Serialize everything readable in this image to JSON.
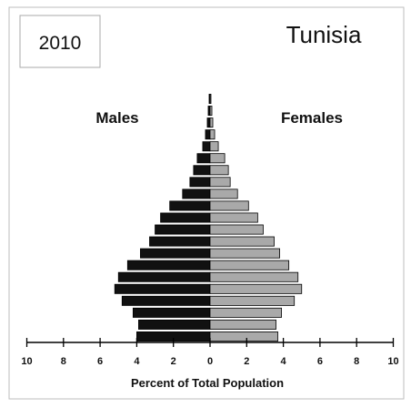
{
  "chart_data": {
    "type": "bar",
    "subtype": "population-pyramid",
    "year_label": "2010",
    "title": "Tunisia",
    "left_series_label": "Males",
    "right_series_label": "Females",
    "xlabel": "Percent of Total Population",
    "x_ticks": [
      "10",
      "8",
      "6",
      "4",
      "2",
      "0",
      "2",
      "4",
      "6",
      "8",
      "10"
    ],
    "xlim": [
      -10,
      10
    ],
    "grid": false,
    "colors": {
      "males": "#111111",
      "females": "#a9a9a9",
      "outline": "#000000"
    },
    "age_groups_top_to_bottom": 21,
    "series": [
      {
        "name": "Males",
        "values": [
          0.05,
          0.1,
          0.15,
          0.25,
          0.4,
          0.7,
          0.9,
          1.1,
          1.5,
          2.2,
          2.7,
          3.0,
          3.3,
          3.8,
          4.5,
          5.0,
          5.2,
          4.8,
          4.2,
          3.9,
          4.0
        ]
      },
      {
        "name": "Females",
        "values": [
          0.05,
          0.1,
          0.15,
          0.25,
          0.45,
          0.8,
          1.0,
          1.1,
          1.5,
          2.1,
          2.6,
          2.9,
          3.5,
          3.8,
          4.3,
          4.8,
          5.0,
          4.6,
          3.9,
          3.6,
          3.7
        ]
      }
    ]
  }
}
